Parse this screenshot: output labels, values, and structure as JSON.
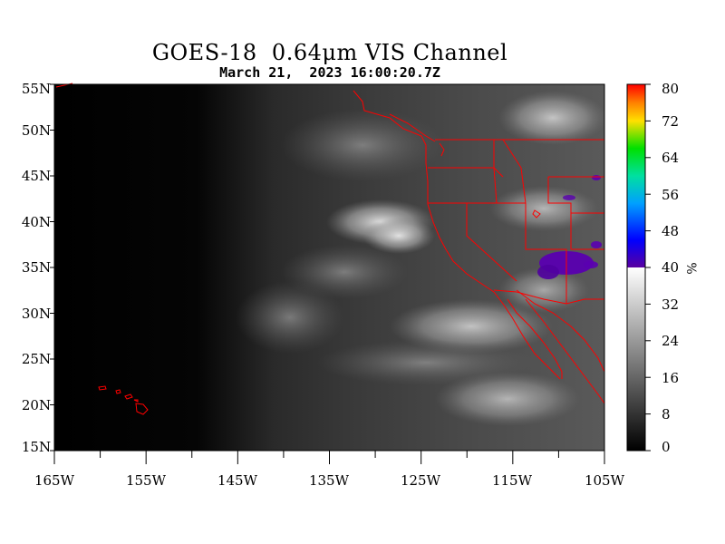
{
  "title": "GOES-18  0.64μm VIS Channel",
  "timestamp": "March 21,  2023 16:00:20.7Z",
  "map": {
    "lat_ticks": [
      "55N",
      "50N",
      "45N",
      "40N",
      "35N",
      "30N",
      "25N",
      "20N",
      "15N"
    ],
    "lon_ticks": [
      "165W",
      "155W",
      "145W",
      "135W",
      "125W",
      "115W",
      "105W"
    ],
    "lat_range": [
      15,
      55
    ],
    "lon_range": [
      -165,
      -105
    ],
    "coastline_color": "#ff0000"
  },
  "colorbar": {
    "ticks": [
      "80",
      "72",
      "64",
      "56",
      "48",
      "40",
      "32",
      "24",
      "16",
      "8",
      "0"
    ],
    "unit": "%",
    "range": [
      0,
      80
    ]
  }
}
